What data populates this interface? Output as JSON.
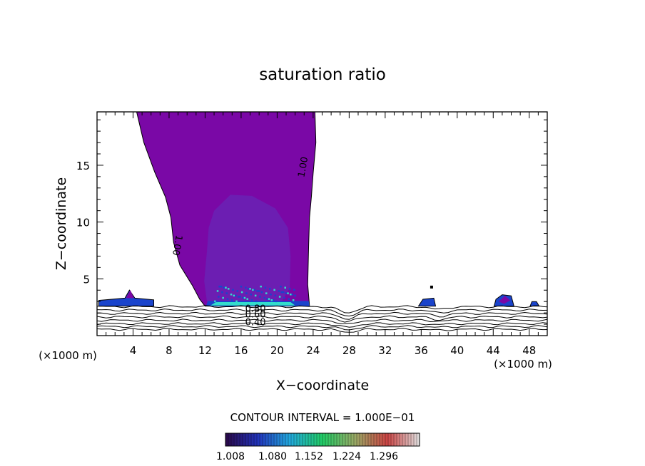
{
  "chart_data": {
    "type": "contour",
    "title": "saturation ratio",
    "xlabel": "X−coordinate",
    "ylabel": "Z−coordinate",
    "x_units_left": "(×1000 m)",
    "x_units_right": "(×1000 m)",
    "xlim": [
      0,
      50
    ],
    "ylim": [
      0,
      19.7
    ],
    "xticks": [
      4,
      8,
      12,
      16,
      20,
      24,
      28,
      32,
      36,
      40,
      44,
      48
    ],
    "yticks": [
      5,
      10,
      15
    ],
    "contour_labels": [
      {
        "text": "1.00",
        "x": 23.2,
        "y": 14.8,
        "angle": -80
      },
      {
        "text": "1.00",
        "x": 8.6,
        "y": 8.0,
        "angle": 100
      },
      {
        "text": "0.80",
        "x": 17.6,
        "y": 2.1,
        "angle": 0
      },
      {
        "text": "0.60",
        "x": 17.6,
        "y": 1.6,
        "angle": 0
      },
      {
        "text": "0.40",
        "x": 17.6,
        "y": 0.9,
        "angle": 0
      }
    ],
    "contour_interval_text": "CONTOUR INTERVAL = 1.000E−01",
    "colorbar": {
      "colors": [
        "#2a0848",
        "#2233bb",
        "#22aadd",
        "#22cc66",
        "#99aa66",
        "#cc4444",
        "#e0e0e0"
      ],
      "tick_labels": [
        "1.008",
        "1.080",
        "1.152",
        "1.224",
        "1.296"
      ]
    },
    "fill_colors": {
      "plume": "#7a08a6",
      "core": "#6a22b4",
      "base_blue": "#1a44cc",
      "base_cyan": "#33ddcc"
    }
  }
}
